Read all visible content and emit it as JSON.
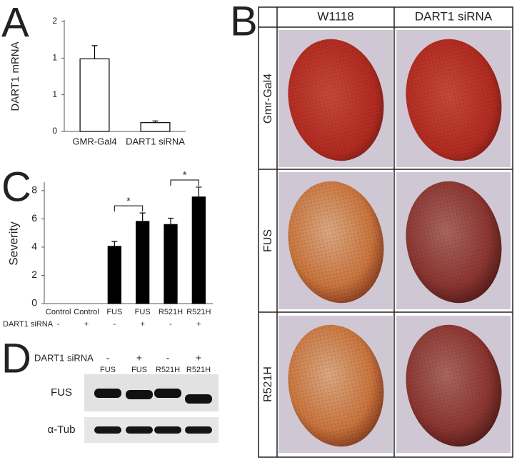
{
  "panels": {
    "a": "A",
    "b": "B",
    "c": "C",
    "d": "D"
  },
  "chart_data": [
    {
      "type": "bar",
      "ylabel": "DART1 mRNA",
      "categories": [
        "GMR-Gal4",
        "DART1 siRNA"
      ],
      "values": [
        1.32,
        0.16
      ],
      "errors": [
        0.24,
        0.03
      ],
      "color": "#ffffff",
      "ylim": [
        0,
        2
      ],
      "yticks": [
        0,
        {
          "value": 0.667,
          "label": "1"
        },
        {
          "value": 1.333,
          "label": "1"
        },
        2
      ]
    },
    {
      "type": "bar",
      "ylabel": "Severity",
      "categories": [
        "Control",
        "Control",
        "FUS",
        "FUS",
        "R521H",
        "R521H"
      ],
      "row_label": "DART1 siRNA",
      "row_values": [
        "-",
        "+",
        "-",
        "+",
        "-",
        "+"
      ],
      "values": [
        0,
        0,
        4.05,
        5.82,
        5.6,
        7.55
      ],
      "errors": [
        0,
        0,
        0.35,
        0.6,
        0.45,
        0.7
      ],
      "color": "#000000",
      "ylim": [
        0,
        8.5
      ],
      "yticks": [
        0,
        2,
        4,
        6,
        8
      ],
      "annotations": [
        "*",
        "*"
      ]
    }
  ],
  "eye_grid": {
    "columns": [
      "W1118",
      "DART1 siRNA"
    ],
    "rows": [
      "Gmr-Gal4",
      "FUS",
      "R521H"
    ]
  },
  "blot": {
    "treatment": "DART1 siRNA",
    "signs": [
      "-",
      "+",
      "-",
      "+"
    ],
    "lanes": [
      "FUS",
      "FUS",
      "R521H",
      "R521H"
    ],
    "rows": [
      "FUS",
      "α-Tub"
    ]
  }
}
